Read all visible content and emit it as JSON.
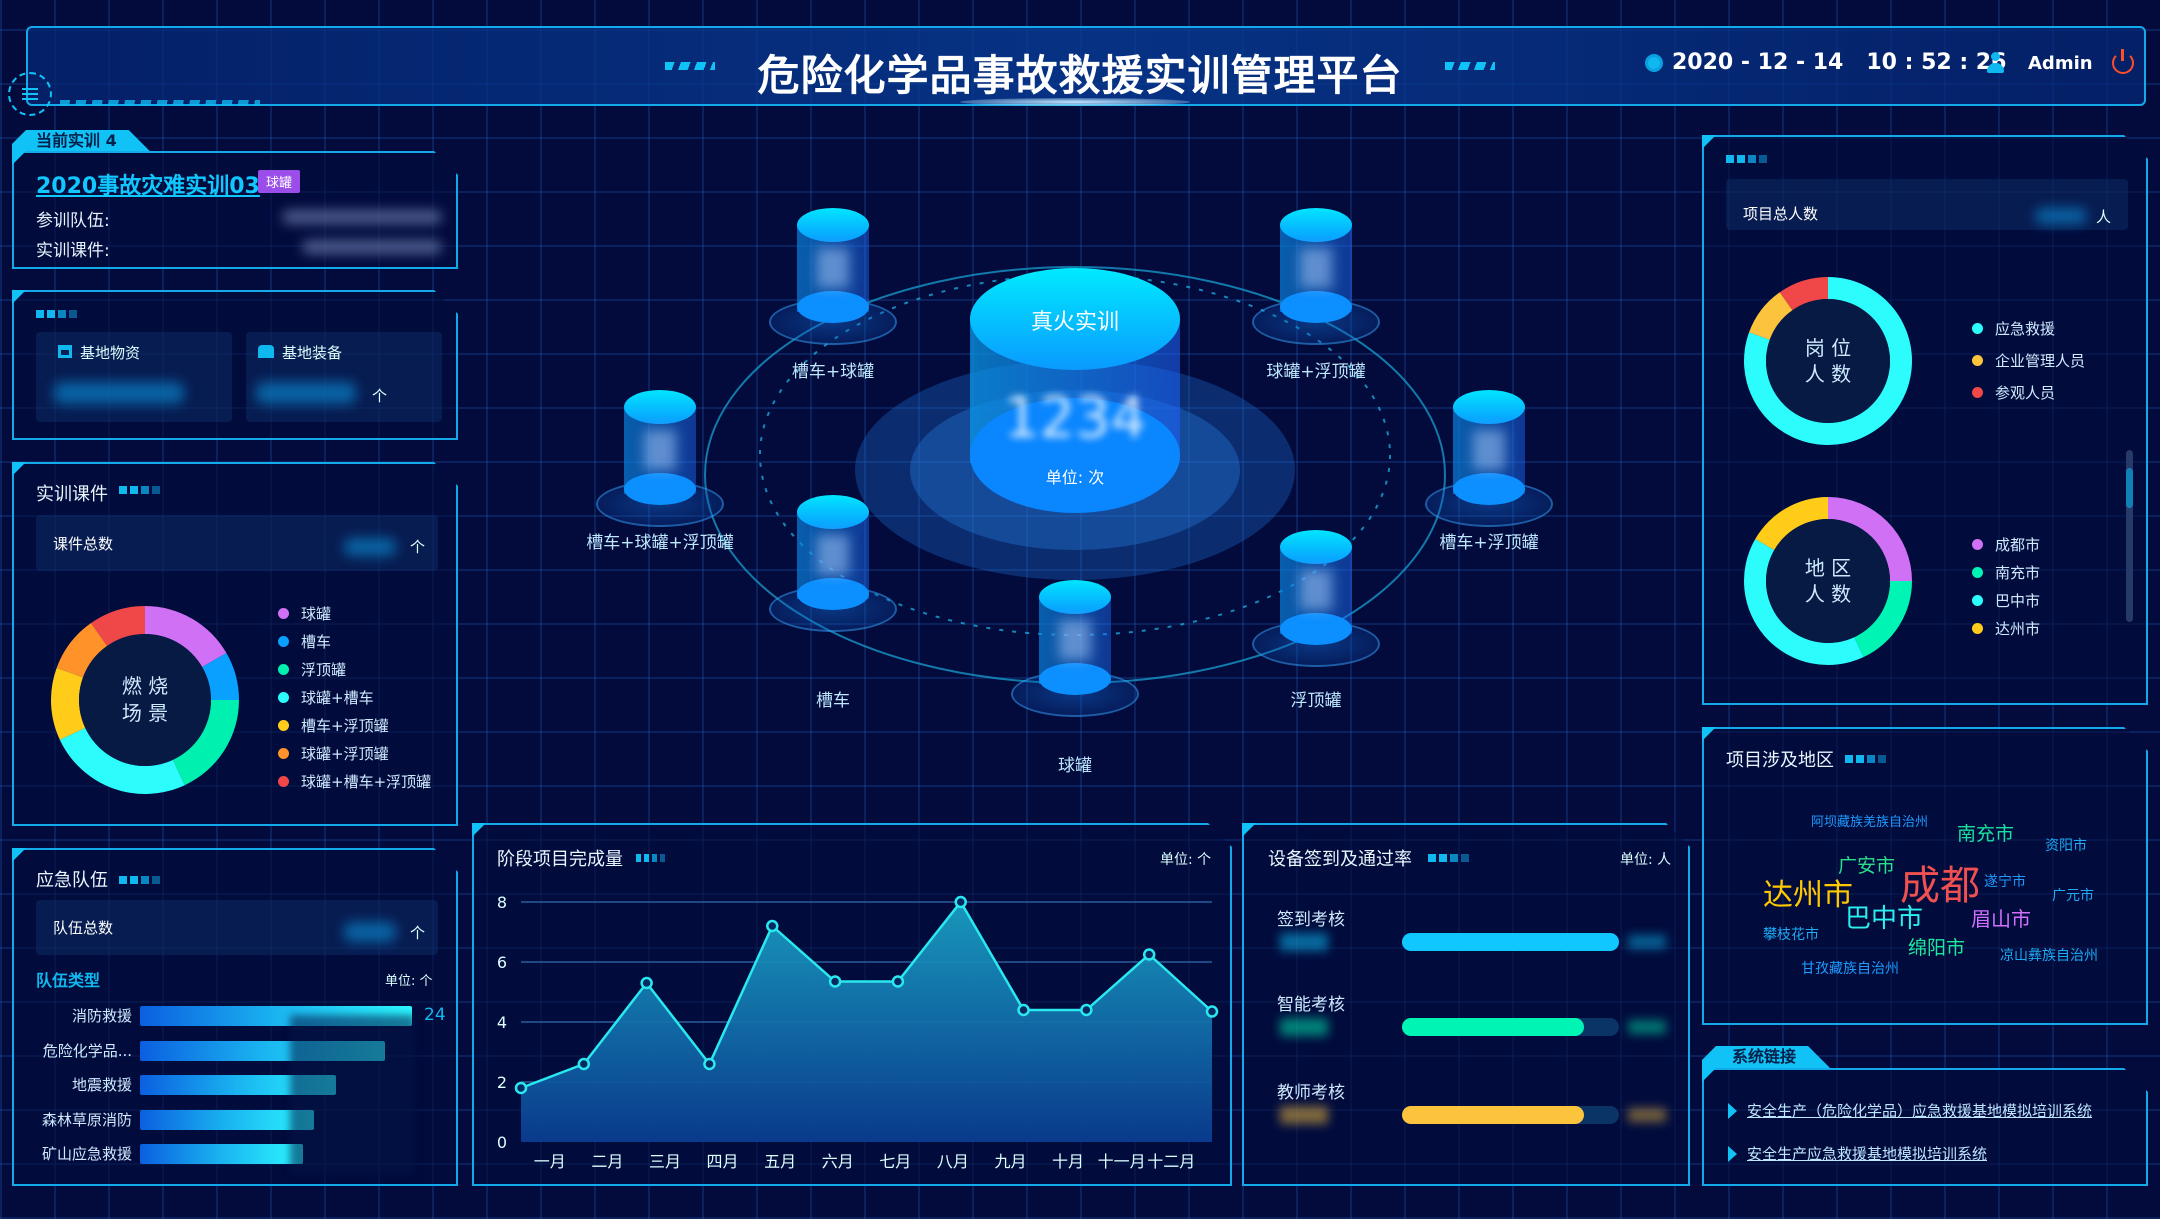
{
  "header": {
    "title": "危险化学品事故救援实训管理平台",
    "datetime": "2020 - 12 - 14   10 : 52 : 26",
    "user": "Admin",
    "icons": [
      "menu-icon",
      "clock-icon",
      "user-icon",
      "power-icon"
    ]
  },
  "current_training": {
    "tab_label": "当前实训 4",
    "name": "2020事故灾难实训03",
    "tag": "球罐",
    "tag_color": "#9b4dea",
    "team_label": "参训队伍:",
    "course_label": "实训课件:"
  },
  "base": {
    "materials_label": "基地物资",
    "equipment_label": "基地装备",
    "unit": "个"
  },
  "courses": {
    "title": "实训课件",
    "total_label": "课件总数",
    "unit": "个",
    "donut_center": [
      "燃 烧",
      "场 景"
    ],
    "legend": [
      {
        "name": "球罐",
        "color": "#d070f5",
        "share": 60
      },
      {
        "name": "槽车",
        "color": "#0aa0ff",
        "share": 30
      },
      {
        "name": "浮顶罐",
        "color": "#00f0b0",
        "share": 65
      },
      {
        "name": "球罐+槽车",
        "color": "#2cfcfc",
        "share": 90
      },
      {
        "name": "槽车+浮顶罐",
        "color": "#ffcc1a",
        "share": 45
      },
      {
        "name": "球罐+浮顶罐",
        "color": "#ff9228",
        "share": 35
      },
      {
        "name": "球罐+槽车+浮顶罐",
        "color": "#f04848",
        "share": 35
      }
    ]
  },
  "teams": {
    "title": "应急队伍",
    "total_label": "队伍总数",
    "unit": "个",
    "type_label": "队伍类型",
    "type_unit": "单位: 个",
    "bars": [
      {
        "name": "消防救援",
        "value": "24",
        "fill": 1.0
      },
      {
        "name": "危险化学品...",
        "fill": 0.9
      },
      {
        "name": "地震救援",
        "fill": 0.72
      },
      {
        "name": "森林草原消防",
        "fill": 0.64
      },
      {
        "name": "矿山应急救援",
        "fill": 0.6
      }
    ]
  },
  "center": {
    "main_label": "真火实训",
    "main_value": "1234",
    "main_unit": "单位: 次",
    "items": [
      "槽车+球罐",
      "球罐+浮顶罐",
      "槽车+球罐+浮顶罐",
      "槽车+浮顶罐",
      "槽车",
      "浮顶罐",
      "球罐"
    ]
  },
  "chart_data": {
    "type": "area",
    "title": "阶段项目完成量",
    "unit": "单位: 个",
    "categories": [
      "一月",
      "二月",
      "三月",
      "四月",
      "五月",
      "六月",
      "七月",
      "八月",
      "九月",
      "十月",
      "十一月",
      "十二月"
    ],
    "values": [
      1.8,
      2.6,
      5.3,
      2.6,
      7.2,
      5.35,
      5.35,
      8.0,
      4.4,
      4.4,
      6.25,
      4.35
    ],
    "ylim": [
      0,
      8
    ],
    "yticks": [
      0,
      2,
      4,
      6,
      8
    ],
    "grid": true,
    "color": "#2ae8f0"
  },
  "devices": {
    "title": "设备签到及通过率",
    "unit": "单位: 人",
    "rows": [
      {
        "name": "签到考核",
        "rate": 1.0,
        "color": "#10c8ff"
      },
      {
        "name": "智能考核",
        "rate": 0.84,
        "color": "#00f5b4"
      },
      {
        "name": "教师考核",
        "rate": 0.84,
        "color": "#fbc43c"
      }
    ]
  },
  "people": {
    "total_label": "项目总人数",
    "unit": "人",
    "post_center": [
      "岗 位",
      "人 数"
    ],
    "post_legend": [
      {
        "name": "应急救援",
        "color": "#2cfcfc",
        "share": 290
      },
      {
        "name": "企业管理人员",
        "color": "#fbc43c",
        "share": 35
      },
      {
        "name": "参观人员",
        "color": "#f04848",
        "share": 35
      }
    ],
    "region_center": [
      "地 区",
      "人 数"
    ],
    "region_legend": [
      {
        "name": "成都市",
        "color": "#d070f5",
        "share": 90
      },
      {
        "name": "南充市",
        "color": "#00f5b4",
        "share": 65
      },
      {
        "name": "巴中市",
        "color": "#2cfcfc",
        "share": 145
      },
      {
        "name": "达州市",
        "color": "#ffcc1a",
        "share": 60
      }
    ]
  },
  "regions": {
    "title": "项目涉及地区",
    "words": [
      {
        "text": "阿坝藏族羌族自治州",
        "color": "#1e9bff"
      },
      {
        "text": "南充市",
        "color": "#18e0a0"
      },
      {
        "text": "资阳市",
        "color": "#1eaaf5"
      },
      {
        "text": "广安市",
        "color": "#28e08c"
      },
      {
        "text": "成都",
        "color": "#f05050"
      },
      {
        "text": "遂宁市",
        "color": "#1e9bff"
      },
      {
        "text": "达州市",
        "color": "#ffc800"
      },
      {
        "text": "广元市",
        "color": "#1eaaf5"
      },
      {
        "text": "巴中市",
        "color": "#2af0f0"
      },
      {
        "text": "眉山市",
        "color": "#d070ff"
      },
      {
        "text": "攀枝花市",
        "color": "#1eaaf5"
      },
      {
        "text": "绵阳市",
        "color": "#1ee89c"
      },
      {
        "text": "凉山彝族自治州",
        "color": "#1eaaf5"
      },
      {
        "text": "甘孜藏族自治州",
        "color": "#1e9bff"
      }
    ]
  },
  "links": {
    "tab_label": "系统链接",
    "items": [
      "安全生产（危险化学品）应急救援基地模拟培训系统",
      "安全生产应急救援基地模拟培训系统"
    ]
  }
}
